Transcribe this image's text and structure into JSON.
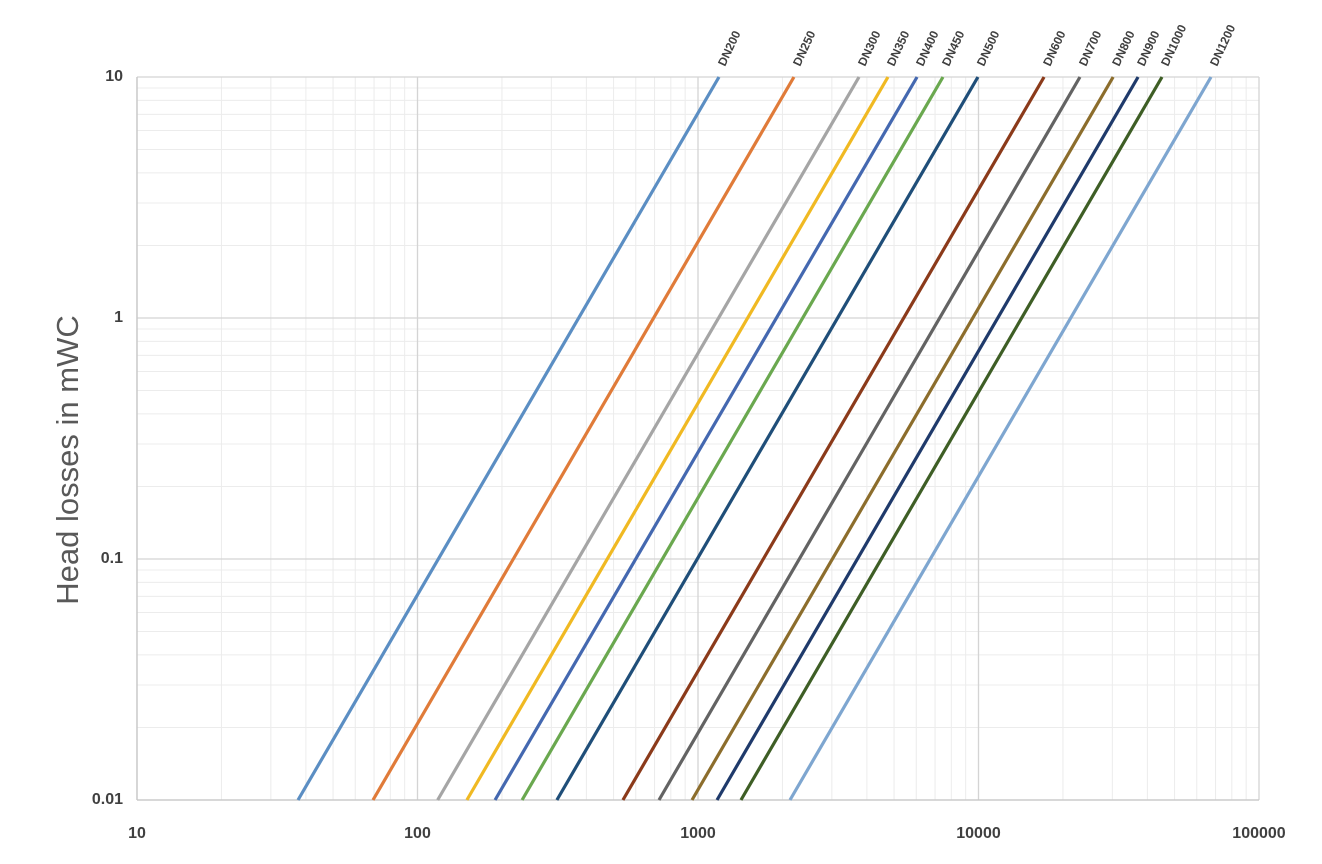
{
  "chart_data": {
    "type": "line",
    "y_label": "Head losses in mWC",
    "xlog": true,
    "ylog": true,
    "grid": true,
    "minor_grid": true,
    "xlim": [
      10,
      100000
    ],
    "xticks": [
      10,
      100,
      1000,
      10000,
      100000
    ],
    "ylim": [
      0.01,
      10
    ],
    "yticks": [
      0.01,
      0.1,
      1,
      10
    ],
    "series": [
      {
        "name": "DN200",
        "color": "#5b8ec3",
        "x": [
          37.5,
          1188
        ],
        "values": [
          0.01,
          10
        ]
      },
      {
        "name": "DN250",
        "color": "#e07b39",
        "x": [
          69.4,
          2198
        ],
        "values": [
          0.01,
          10
        ]
      },
      {
        "name": "DN300",
        "color": "#a5a5a5",
        "x": [
          118,
          3750
        ],
        "values": [
          0.01,
          10
        ]
      },
      {
        "name": "DN350",
        "color": "#f0b922",
        "x": [
          150,
          4756
        ],
        "values": [
          0.01,
          10
        ]
      },
      {
        "name": "DN400",
        "color": "#4468b0",
        "x": [
          189,
          6039
        ],
        "values": [
          0.01,
          10
        ]
      },
      {
        "name": "DN450",
        "color": "#6aa84f",
        "x": [
          236,
          7470
        ],
        "values": [
          0.01,
          10
        ]
      },
      {
        "name": "DN500",
        "color": "#1f4e79",
        "x": [
          314,
          9953
        ],
        "values": [
          0.01,
          10
        ]
      },
      {
        "name": "DN600",
        "color": "#8b3a1a",
        "x": [
          540,
          17130
        ],
        "values": [
          0.01,
          10
        ]
      },
      {
        "name": "DN700",
        "color": "#636363",
        "x": [
          726,
          23000
        ],
        "values": [
          0.01,
          10
        ]
      },
      {
        "name": "DN800",
        "color": "#8c6d2c",
        "x": [
          952,
          30200
        ],
        "values": [
          0.01,
          10
        ]
      },
      {
        "name": "DN900",
        "color": "#1f3a6b",
        "x": [
          1169,
          37060
        ],
        "values": [
          0.01,
          10
        ]
      },
      {
        "name": "DN1000",
        "color": "#3e5e25",
        "x": [
          1423,
          45100
        ],
        "values": [
          0.01,
          10
        ]
      },
      {
        "name": "DN1200",
        "color": "#7ea6d0",
        "x": [
          2128,
          67450
        ],
        "values": [
          0.01,
          10
        ]
      }
    ]
  }
}
